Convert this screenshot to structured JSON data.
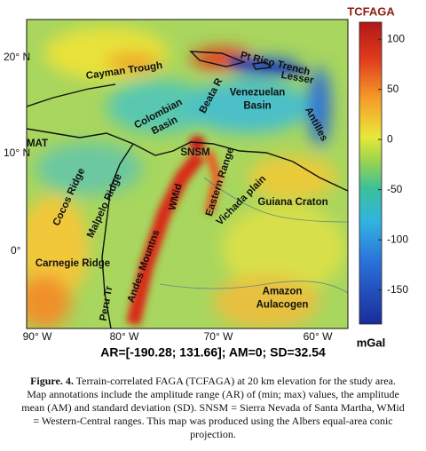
{
  "map": {
    "latitude_labels": [
      "20° N",
      "10° N",
      "0°"
    ],
    "longitude_labels": [
      "90° W",
      "80° W",
      "70° W",
      "60° W"
    ],
    "annotations": [
      {
        "lines": [
          "Cayman Trough"
        ]
      },
      {
        "lines": [
          "Pt Rico Trench"
        ]
      },
      {
        "lines": [
          "Lesser"
        ]
      },
      {
        "lines": [
          "Antilles"
        ]
      },
      {
        "lines": [
          "Beata R"
        ]
      },
      {
        "lines": [
          "Venezuelan",
          "Basin"
        ]
      },
      {
        "lines": [
          "Colombian",
          "Basin"
        ]
      },
      {
        "lines": [
          "SNSM"
        ]
      },
      {
        "lines": [
          "MAT"
        ]
      },
      {
        "lines": [
          "Cocos Ridge"
        ]
      },
      {
        "lines": [
          "Malpelo Ridge"
        ]
      },
      {
        "lines": [
          "WMid"
        ]
      },
      {
        "lines": [
          "Eastern Range"
        ]
      },
      {
        "lines": [
          "Vichada plain"
        ]
      },
      {
        "lines": [
          "Guiana Craton"
        ]
      },
      {
        "lines": [
          "Carnegie Ridge"
        ]
      },
      {
        "lines": [
          "Peru Tr"
        ]
      },
      {
        "lines": [
          "Andes Mountns"
        ]
      },
      {
        "lines": [
          "Amazon",
          "Aulacogen"
        ]
      }
    ]
  },
  "colorbar": {
    "title": "TCFAGA",
    "unit": "mGal",
    "lim": [
      -184,
      117
    ],
    "ticks": [
      100,
      50,
      0,
      -50,
      -100,
      -150
    ]
  },
  "stats": "AR=[-190.28; 131.66]; AM=0; SD=32.54",
  "caption": {
    "label": "Figure. 4.",
    "lines": [
      " Terrain-correlated FAGA (TCFAGA) at 20 km elevation for the study area.",
      "Map annotations include the amplitude range (AR) of (min; max) values, the amplitude",
      "mean (AM) and standard deviation (SD). SNSM = Sierra Nevada of Santa Martha, WMid",
      "= Western-Central ranges. This map was produced using the Albers equal-area conic",
      "projection."
    ]
  }
}
